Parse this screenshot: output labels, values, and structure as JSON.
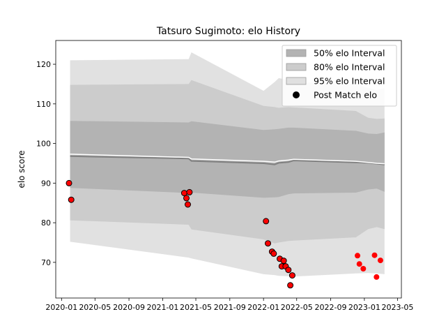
{
  "chart_data": {
    "type": "line",
    "title": "Tatsuro Sugimoto: elo History",
    "xlabel": "",
    "ylabel": "elo score",
    "xlim": [
      "2019-12-11",
      "2023-05-15"
    ],
    "ylim": [
      61,
      126
    ],
    "x_ticks": [
      {
        "date": "2020-01-01",
        "label": "2020-01"
      },
      {
        "date": "2020-05-01",
        "label": "2020-05"
      },
      {
        "date": "2020-09-01",
        "label": "2020-09"
      },
      {
        "date": "2021-01-01",
        "label": "2021-01"
      },
      {
        "date": "2021-05-01",
        "label": "2021-05"
      },
      {
        "date": "2021-09-01",
        "label": "2021-09"
      },
      {
        "date": "2022-01-01",
        "label": "2022-01"
      },
      {
        "date": "2022-05-01",
        "label": "2022-05"
      },
      {
        "date": "2022-09-01",
        "label": "2022-09"
      },
      {
        "date": "2023-01-01",
        "label": "2023-01"
      },
      {
        "date": "2023-05-01",
        "label": "2023-05"
      }
    ],
    "y_ticks": [
      70,
      80,
      90,
      100,
      110,
      120
    ],
    "grid": false,
    "legend": {
      "placement": "top-right",
      "entries": [
        {
          "label": "50% elo Interval",
          "kind": "band",
          "color": "#b3b3b3"
        },
        {
          "label": "80% elo Interval",
          "kind": "band",
          "color": "#cccccc"
        },
        {
          "label": "95% elo Interval",
          "kind": "band",
          "color": "#e0e0e0"
        },
        {
          "label": "Post Match elo",
          "kind": "marker",
          "color": "#000000"
        }
      ]
    },
    "colors": {
      "band50": "#b3b3b3",
      "band80": "#cccccc",
      "band95": "#e1e1e1",
      "mean_line": "#808080",
      "upper_line": "#ffffff",
      "marker_fill": "#ff0000",
      "marker_edge": "#000000"
    },
    "series": [
      {
        "name": "95% elo Interval",
        "kind": "band",
        "x": [
          "2020-02-01",
          "2021-04-05",
          "2021-04-15",
          "2022-01-01",
          "2022-02-10",
          "2022-02-25",
          "2022-04-01",
          "2022-04-20",
          "2022-12-01",
          "2023-01-15",
          "2023-02-15",
          "2023-03-15"
        ],
        "upper": [
          121,
          121.3,
          123,
          113.3,
          115.5,
          116.5,
          116,
          115.5,
          115,
          114,
          113.5,
          114
        ],
        "lower": [
          75.2,
          71.2,
          71,
          67,
          66.8,
          66.6,
          66.5,
          66.4,
          67.2,
          67.3,
          67.2,
          67
        ]
      },
      {
        "name": "80% elo Interval",
        "kind": "band",
        "x": [
          "2020-02-01",
          "2021-04-05",
          "2021-04-15",
          "2022-01-01",
          "2022-02-10",
          "2022-02-25",
          "2022-04-01",
          "2022-04-20",
          "2022-12-01",
          "2023-01-15",
          "2023-02-15",
          "2023-03-15"
        ],
        "upper": [
          114.8,
          115,
          116,
          109.5,
          109.2,
          109,
          109.2,
          109.1,
          108.2,
          106.5,
          106.2,
          106.3
        ],
        "lower": [
          80.6,
          79.5,
          78.3,
          75.8,
          74.8,
          75,
          75.4,
          75.5,
          76.3,
          78.4,
          78.9,
          78.4
        ]
      },
      {
        "name": "50% elo Interval",
        "kind": "band",
        "x": [
          "2020-02-01",
          "2021-04-05",
          "2021-04-15",
          "2022-01-01",
          "2022-02-10",
          "2022-02-25",
          "2022-04-01",
          "2022-04-20",
          "2022-12-01",
          "2023-01-15",
          "2023-02-15",
          "2023-03-15"
        ],
        "upper": [
          105.7,
          105.3,
          105.6,
          103.4,
          103.6,
          103.7,
          104,
          104,
          103.2,
          102.5,
          102.4,
          102.8
        ],
        "lower": [
          88.8,
          87.5,
          87.6,
          86.3,
          86.4,
          86.5,
          87.2,
          87.4,
          87.6,
          88.4,
          88.6,
          87.8
        ]
      },
      {
        "name": "",
        "kind": "line",
        "role": "mean",
        "x": [
          "2020-02-01",
          "2021-04-05",
          "2021-04-15",
          "2022-01-01",
          "2022-02-10",
          "2022-02-25",
          "2022-04-01",
          "2022-04-20",
          "2022-12-01",
          "2023-01-15",
          "2023-02-15",
          "2023-03-15"
        ],
        "y": [
          96.8,
          96.2,
          95.6,
          95,
          94.7,
          95.1,
          95.3,
          95.7,
          95.2,
          95.1,
          94.9,
          94.7
        ]
      },
      {
        "name": "",
        "kind": "line",
        "role": "upper",
        "x": [
          "2020-02-01",
          "2021-04-05",
          "2021-04-15",
          "2022-01-01",
          "2022-02-10",
          "2022-02-25",
          "2022-04-01",
          "2022-04-20",
          "2022-12-01",
          "2023-01-15",
          "2023-02-15",
          "2023-03-15"
        ],
        "y": [
          97.3,
          96.5,
          96.1,
          95.5,
          95.3,
          95.6,
          95.8,
          96,
          95.5,
          95.2,
          95,
          94.9
        ]
      },
      {
        "name": "Post Match elo",
        "kind": "scatter",
        "points": [
          {
            "x": "2020-01-28",
            "y": 90
          },
          {
            "x": "2020-02-05",
            "y": 85.8
          },
          {
            "x": "2021-03-20",
            "y": 87.5
          },
          {
            "x": "2021-03-28",
            "y": 86.2
          },
          {
            "x": "2021-04-02",
            "y": 84.6
          },
          {
            "x": "2021-04-08",
            "y": 87.7
          },
          {
            "x": "2022-01-10",
            "y": 80.4
          },
          {
            "x": "2022-01-17",
            "y": 74.8
          },
          {
            "x": "2022-02-01",
            "y": 72.7
          },
          {
            "x": "2022-02-07",
            "y": 72.2
          },
          {
            "x": "2022-03-01",
            "y": 70.9
          },
          {
            "x": "2022-03-08",
            "y": 69
          },
          {
            "x": "2022-03-15",
            "y": 70.4
          },
          {
            "x": "2022-03-22",
            "y": 69
          },
          {
            "x": "2022-04-01",
            "y": 68.1
          },
          {
            "x": "2022-04-08",
            "y": 64.2
          },
          {
            "x": "2022-04-15",
            "y": 66.7
          },
          {
            "x": "2022-12-07",
            "y": 71.7
          },
          {
            "x": "2022-12-14",
            "y": 69.6
          },
          {
            "x": "2022-12-28",
            "y": 68.4
          },
          {
            "x": "2023-02-07",
            "y": 71.8
          },
          {
            "x": "2023-02-14",
            "y": 66.3
          },
          {
            "x": "2023-02-28",
            "y": 70.5
          }
        ]
      }
    ]
  }
}
